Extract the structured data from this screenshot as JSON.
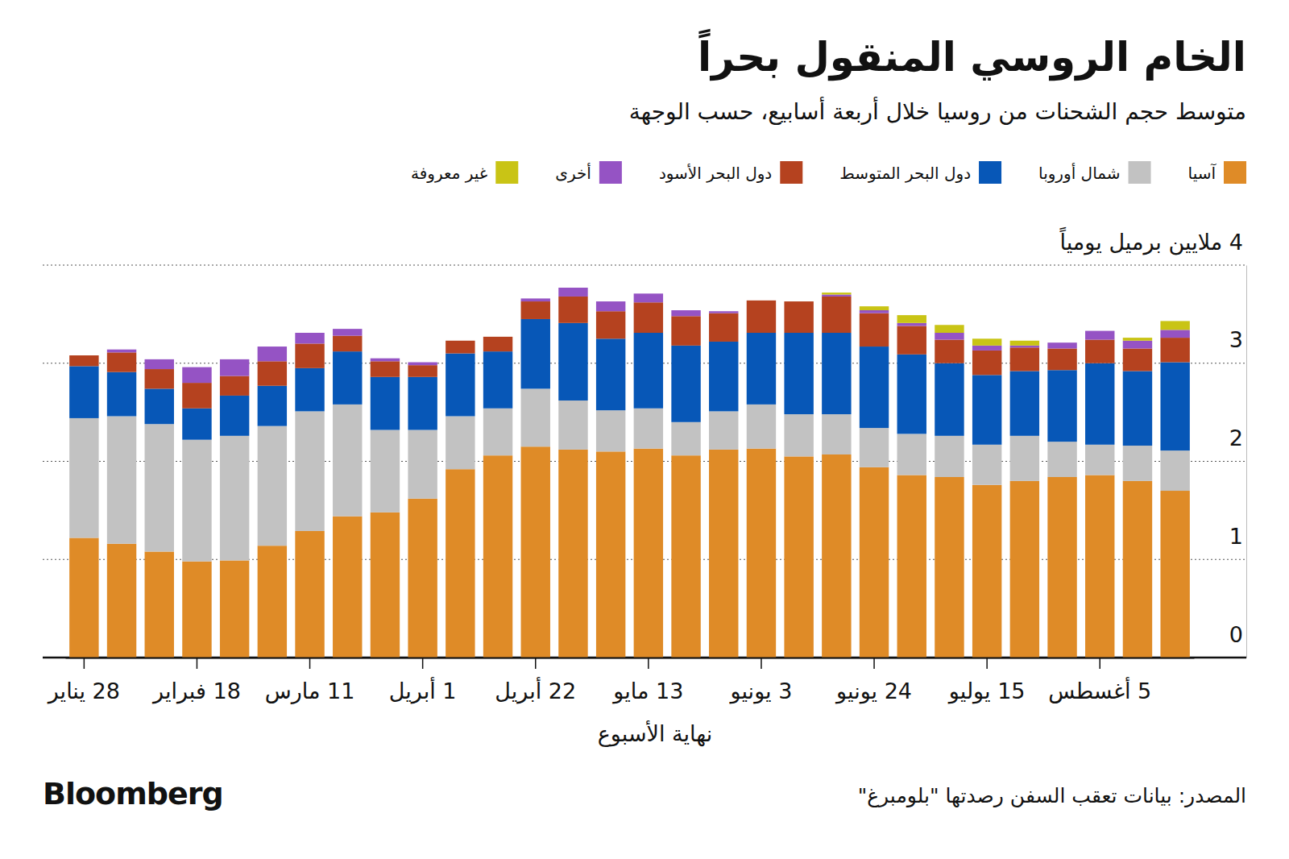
{
  "chart_data": {
    "type": "bar",
    "stacked": true,
    "grid": true,
    "title": "الخام الروسي المنقول بحراً",
    "subtitle": "متوسط حجم الشحنات من روسيا خلال أربعة أسابيع، حسب الوجهة",
    "x_label": "نهاية الأسبوع",
    "source": "المصدر: بيانات تعقب السفن رصدتها \"بلومبرغ\"",
    "brand": "Bloomberg",
    "categories": [
      "28 يناير",
      null,
      null,
      "18 فبراير",
      null,
      null,
      "11 مارس",
      null,
      null,
      "1 أبريل",
      null,
      null,
      "22 أبريل",
      null,
      null,
      "13 مايو",
      null,
      null,
      "3 يونيو",
      null,
      null,
      "24 يونيو",
      null,
      null,
      "15 يوليو",
      null,
      null,
      "5 أغسطس",
      null,
      null
    ],
    "ylim": [
      0,
      4
    ],
    "yticks": [
      0,
      1,
      2,
      3,
      {
        "value": 4,
        "label": "4 ملايين برميل يومياً"
      }
    ],
    "series": [
      {
        "name": "آسيا",
        "color": "#df8b27",
        "values": [
          1.22,
          1.16,
          1.08,
          0.98,
          0.99,
          1.14,
          1.29,
          1.44,
          1.48,
          1.62,
          1.92,
          2.06,
          2.15,
          2.12,
          2.1,
          2.13,
          2.06,
          2.12,
          2.13,
          2.05,
          2.07,
          1.94,
          1.86,
          1.84,
          1.76,
          1.8,
          1.84,
          1.86,
          1.8,
          1.7
        ]
      },
      {
        "name": "شمال أوروبا",
        "color": "#c2c2c2",
        "values": [
          1.22,
          1.3,
          1.3,
          1.24,
          1.27,
          1.22,
          1.22,
          1.14,
          0.84,
          0.7,
          0.54,
          0.48,
          0.59,
          0.5,
          0.42,
          0.41,
          0.34,
          0.39,
          0.45,
          0.43,
          0.41,
          0.4,
          0.42,
          0.42,
          0.41,
          0.46,
          0.36,
          0.31,
          0.36,
          0.41
        ]
      },
      {
        "name": "دول البحر المتوسط",
        "color": "#0757b7",
        "values": [
          0.53,
          0.45,
          0.36,
          0.32,
          0.41,
          0.41,
          0.44,
          0.54,
          0.54,
          0.54,
          0.64,
          0.58,
          0.71,
          0.79,
          0.73,
          0.77,
          0.78,
          0.71,
          0.73,
          0.83,
          0.83,
          0.83,
          0.81,
          0.74,
          0.71,
          0.66,
          0.73,
          0.83,
          0.76,
          0.9
        ]
      },
      {
        "name": "دول البحر الأسود",
        "color": "#b5421f",
        "values": [
          0.11,
          0.2,
          0.2,
          0.26,
          0.2,
          0.25,
          0.25,
          0.16,
          0.16,
          0.12,
          0.13,
          0.15,
          0.18,
          0.27,
          0.28,
          0.31,
          0.3,
          0.29,
          0.33,
          0.32,
          0.37,
          0.34,
          0.29,
          0.24,
          0.25,
          0.24,
          0.22,
          0.24,
          0.23,
          0.25
        ]
      },
      {
        "name": "أخرى",
        "color": "#9553c4",
        "values": [
          0,
          0.03,
          0.1,
          0.16,
          0.17,
          0.15,
          0.11,
          0.07,
          0.03,
          0.03,
          0,
          0,
          0.03,
          0.09,
          0.1,
          0.09,
          0.06,
          0.02,
          0,
          0,
          0.02,
          0.03,
          0.03,
          0.07,
          0.05,
          0.02,
          0.06,
          0.09,
          0.08,
          0.08
        ]
      },
      {
        "name": "غير معروفة",
        "color": "#c9c415",
        "values": [
          0,
          0,
          0,
          0,
          0,
          0,
          0,
          0,
          0,
          0,
          0,
          0,
          0,
          0,
          0,
          0,
          0,
          0,
          0,
          0,
          0.02,
          0.04,
          0.08,
          0.08,
          0.07,
          0.05,
          0,
          0,
          0.03,
          0.09
        ]
      }
    ]
  }
}
